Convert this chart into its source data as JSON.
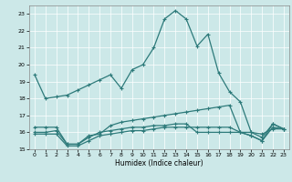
{
  "title": "",
  "xlabel": "Humidex (Indice chaleur)",
  "bg_color": "#cce8e8",
  "line_color": "#2d7a7a",
  "grid_color": "#ffffff",
  "xlim": [
    -0.5,
    23.5
  ],
  "ylim": [
    15,
    23.5
  ],
  "yticks": [
    15,
    16,
    17,
    18,
    19,
    20,
    21,
    22,
    23
  ],
  "xticks": [
    0,
    1,
    2,
    3,
    4,
    5,
    6,
    7,
    8,
    9,
    10,
    11,
    12,
    13,
    14,
    15,
    16,
    17,
    18,
    19,
    20,
    21,
    22,
    23
  ],
  "series": [
    {
      "x": [
        0,
        1,
        2,
        3,
        4,
        5,
        6,
        7,
        8,
        9,
        10,
        11,
        12,
        13,
        14,
        15,
        16,
        17,
        18,
        19,
        20,
        21,
        22,
        23
      ],
      "y": [
        19.4,
        18.0,
        18.1,
        18.2,
        18.5,
        18.8,
        19.1,
        19.4,
        18.6,
        19.7,
        20.0,
        21.0,
        22.7,
        23.2,
        22.7,
        21.1,
        21.8,
        19.5,
        18.4,
        17.8,
        16.0,
        15.7,
        16.5,
        16.2
      ]
    },
    {
      "x": [
        0,
        1,
        2,
        3,
        4,
        5,
        6,
        7,
        8,
        9,
        10,
        11,
        12,
        13,
        14,
        15,
        16,
        17,
        18,
        19,
        20,
        21,
        22,
        23
      ],
      "y": [
        16.3,
        16.3,
        16.3,
        15.3,
        15.3,
        15.8,
        15.9,
        16.4,
        16.6,
        16.7,
        16.8,
        16.9,
        17.0,
        17.1,
        17.2,
        17.3,
        17.4,
        17.5,
        17.6,
        16.0,
        15.8,
        15.5,
        16.5,
        16.2
      ]
    },
    {
      "x": [
        0,
        1,
        2,
        3,
        4,
        5,
        6,
        7,
        8,
        9,
        10,
        11,
        12,
        13,
        14,
        15,
        16,
        17,
        18,
        19,
        20,
        21,
        22,
        23
      ],
      "y": [
        16.0,
        16.0,
        16.1,
        15.3,
        15.3,
        15.7,
        16.0,
        16.1,
        16.2,
        16.3,
        16.3,
        16.4,
        16.4,
        16.5,
        16.5,
        16.0,
        16.0,
        16.0,
        16.0,
        16.0,
        16.0,
        15.9,
        16.2,
        16.2
      ]
    },
    {
      "x": [
        0,
        1,
        2,
        3,
        4,
        5,
        6,
        7,
        8,
        9,
        10,
        11,
        12,
        13,
        14,
        15,
        16,
        17,
        18,
        19,
        20,
        21,
        22,
        23
      ],
      "y": [
        15.9,
        15.9,
        15.9,
        15.2,
        15.2,
        15.5,
        15.8,
        15.9,
        16.0,
        16.1,
        16.1,
        16.2,
        16.3,
        16.3,
        16.3,
        16.3,
        16.3,
        16.3,
        16.3,
        16.0,
        15.8,
        15.5,
        16.3,
        16.2
      ]
    }
  ]
}
